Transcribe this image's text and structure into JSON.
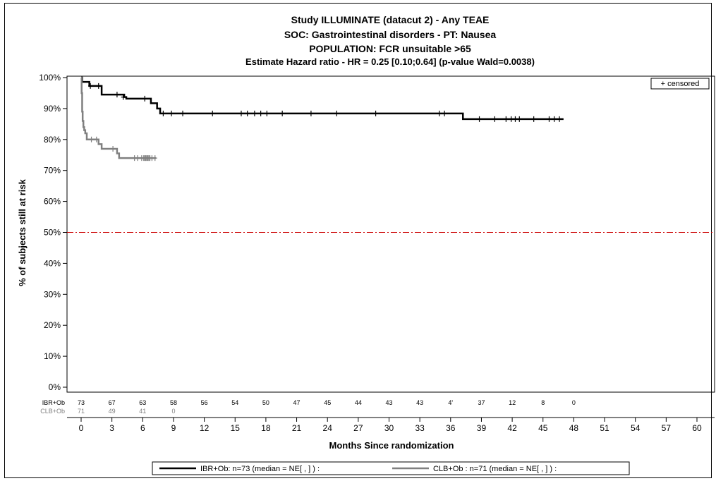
{
  "chart_data": {
    "type": "line",
    "title_lines": [
      "Study ILLUMINATE (datacut 2) - Any TEAE",
      "SOC: Gastrointestinal disorders - PT: Nausea",
      "POPULATION: FCR unsuitable >65",
      "Estimate Hazard ratio -  HR = 0.25 [0.10;0.64] (p-value Wald=0.0038)"
    ],
    "xlabel": "Months Since randomization",
    "ylabel": "% of subjects still at risk",
    "xlim": [
      0,
      61
    ],
    "ylim": [
      0,
      100
    ],
    "x_ticks": [
      0,
      3,
      6,
      9,
      12,
      15,
      18,
      21,
      24,
      27,
      30,
      33,
      36,
      39,
      42,
      45,
      48,
      51,
      54,
      57,
      60
    ],
    "y_ticks": [
      0,
      10,
      20,
      30,
      40,
      50,
      60,
      70,
      80,
      90,
      100
    ],
    "y_tick_labels": [
      "0%",
      "10%",
      "20%",
      "30%",
      "40%",
      "50%",
      "60%",
      "70%",
      "80%",
      "90%",
      "100%"
    ],
    "reference_line": {
      "y": 50,
      "color": "#cc0000",
      "style": "dash-dot"
    },
    "inset_legend": "+ censored",
    "grid": false,
    "series": [
      {
        "name": "IBR+Ob",
        "color": "#000000",
        "step_x": [
          0,
          0.1,
          0.4,
          0.8,
          1.4,
          2.0,
          3.8,
          4.2,
          4.4,
          6.5,
          6.8,
          7.2,
          7.4,
          7.7,
          37.2,
          47.0
        ],
        "step_y": [
          100,
          98.6,
          98.6,
          97.3,
          97.3,
          94.5,
          94.5,
          93.7,
          93.2,
          93.2,
          91.7,
          91.7,
          90.0,
          88.4,
          86.6,
          86.6
        ],
        "censored_x": [
          0.9,
          1.7,
          3.5,
          4.1,
          6.2,
          8.0,
          8.8,
          9.9,
          12.8,
          15.6,
          16.2,
          16.9,
          17.5,
          18.1,
          19.6,
          22.4,
          24.9,
          28.7,
          34.9,
          35.4,
          38.8,
          40.3,
          41.4,
          41.9,
          42.3,
          42.7,
          44.1,
          45.6,
          46.1,
          46.6
        ],
        "censored_y": [
          97.3,
          97.3,
          94.5,
          93.7,
          93.2,
          88.4,
          88.4,
          88.4,
          88.4,
          88.4,
          88.4,
          88.4,
          88.4,
          88.4,
          88.4,
          88.4,
          88.4,
          88.4,
          88.4,
          88.4,
          86.6,
          86.6,
          86.6,
          86.6,
          86.6,
          86.6,
          86.6,
          86.6,
          86.6,
          86.6
        ]
      },
      {
        "name": "CLB+Ob",
        "color": "#808080",
        "step_x": [
          0,
          0.05,
          0.1,
          0.15,
          0.22,
          0.3,
          0.4,
          0.55,
          1.4,
          1.7,
          2.0,
          3.2,
          3.5,
          3.7,
          7.3
        ],
        "step_y": [
          100,
          95,
          89,
          86,
          84,
          83,
          82,
          80,
          80,
          78.5,
          77,
          77,
          75.5,
          74,
          74
        ],
        "censored_x": [
          1.0,
          1.5,
          3.1,
          5.2,
          5.5,
          5.9,
          6.1,
          6.2,
          6.3,
          6.4,
          6.5,
          6.6,
          6.7,
          6.9,
          7.2
        ],
        "censored_y": [
          80,
          80,
          77,
          74,
          74,
          74,
          74,
          74,
          74,
          74,
          74,
          74,
          74,
          74,
          74
        ]
      }
    ],
    "risk_table": {
      "rows": [
        {
          "label": "IBR+Ob",
          "color": "#000000",
          "values": [
            "73",
            "67",
            "63",
            "58",
            "56",
            "54",
            "50",
            "47",
            "45",
            "44",
            "43",
            "43",
            "4'",
            "37",
            "12",
            "8",
            "0"
          ]
        },
        {
          "label": "CLB+Ob",
          "color": "#808080",
          "values": [
            "71",
            "49",
            "41",
            "0"
          ]
        }
      ]
    },
    "bottom_legend": [
      {
        "name": "IBR+Ob: n=73 (median = NE[        ,       ]     ) :",
        "color": "#000000"
      },
      {
        "name": "CLB+Ob : n=71 (median = NE[        ,       ]     ) :",
        "color": "#808080"
      }
    ]
  }
}
